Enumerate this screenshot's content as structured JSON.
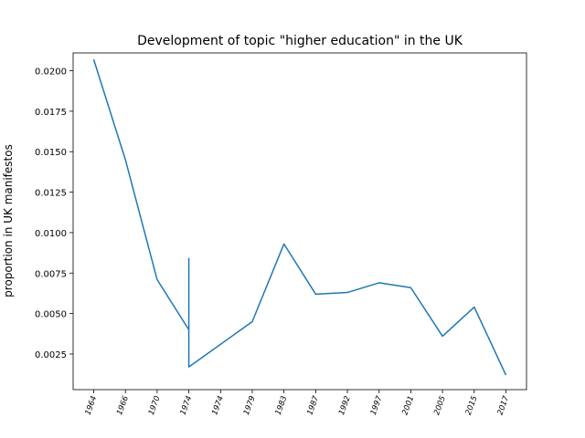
{
  "chart_data": {
    "type": "line",
    "title": "Development of topic \"higher education\" in the UK",
    "xlabel": "",
    "ylabel": "proportion in UK manifestos",
    "categories": [
      "1964",
      "1966",
      "1970",
      "1974",
      "1974",
      "1979",
      "1983",
      "1987",
      "1992",
      "1997",
      "2001",
      "2005",
      "2015",
      "2017"
    ],
    "series": [
      {
        "color": "#1f77b4",
        "points": [
          {
            "x": "1964",
            "y": 0.0207
          },
          {
            "x": "1966",
            "y": 0.0145
          },
          {
            "x": "1970",
            "y": 0.0071
          },
          {
            "x": "1974",
            "y": 0.004
          },
          {
            "x": "1974",
            "y": 0.0084
          },
          {
            "x": "1974",
            "y": 0.0017
          },
          {
            "x": "1979",
            "y": 0.0045
          },
          {
            "x": "1983",
            "y": 0.0093
          },
          {
            "x": "1987",
            "y": 0.0062
          },
          {
            "x": "1992",
            "y": 0.0063
          },
          {
            "x": "1997",
            "y": 0.0069
          },
          {
            "x": "2001",
            "y": 0.0066
          },
          {
            "x": "2005",
            "y": 0.0036
          },
          {
            "x": "2015",
            "y": 0.0054
          },
          {
            "x": "2017",
            "y": 0.0012
          }
        ]
      }
    ],
    "yticks": [
      "0.0025",
      "0.0050",
      "0.0075",
      "0.0100",
      "0.0125",
      "0.0150",
      "0.0175",
      "0.0200"
    ],
    "ylim": [
      0.0003,
      0.0211
    ],
    "grid": false,
    "legend": "none"
  }
}
